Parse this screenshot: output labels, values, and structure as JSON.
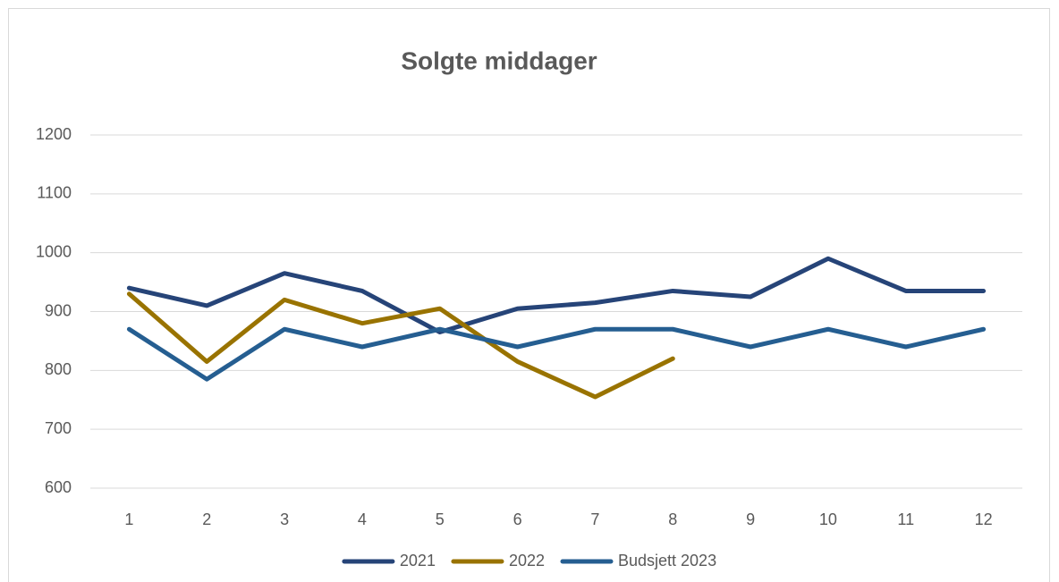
{
  "chart_data": {
    "type": "line",
    "title": "Solgte middager",
    "categories": [
      "1",
      "2",
      "3",
      "4",
      "5",
      "6",
      "7",
      "8",
      "9",
      "10",
      "11",
      "12"
    ],
    "series": [
      {
        "name": "2021",
        "color": "#264478",
        "values": [
          940,
          910,
          965,
          935,
          865,
          905,
          915,
          935,
          925,
          990,
          935,
          935
        ]
      },
      {
        "name": "2022",
        "color": "#997300",
        "values": [
          930,
          815,
          920,
          880,
          905,
          815,
          755,
          820,
          null,
          null,
          null,
          null
        ]
      },
      {
        "name": "Budsjett 2023",
        "color": "#255e91",
        "values": [
          870,
          785,
          870,
          840,
          870,
          840,
          870,
          870,
          840,
          870,
          840,
          870
        ]
      }
    ],
    "ylim": [
      600,
      1200
    ],
    "yticks": [
      600,
      700,
      800,
      900,
      1000,
      1100,
      1200
    ],
    "grid": true,
    "legend": "bottom"
  }
}
